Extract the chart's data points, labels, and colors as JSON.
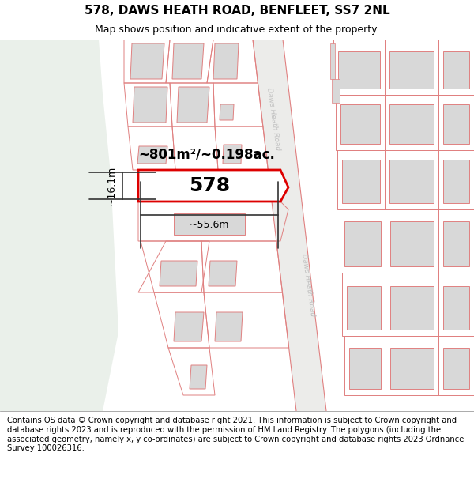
{
  "title": "578, DAWS HEATH ROAD, BENFLEET, SS7 2NL",
  "subtitle": "Map shows position and indicative extent of the property.",
  "footer": "Contains OS data © Crown copyright and database right 2021. This information is subject to Crown copyright and database rights 2023 and is reproduced with the permission of HM Land Registry. The polygons (including the associated geometry, namely x, y co-ordinates) are subject to Crown copyright and database rights 2023 Ordnance Survey 100026316.",
  "area_label": "~801m²/~0.198ac.",
  "width_label": "~55.6m",
  "height_label": "~16.1m",
  "property_number": "578",
  "map_bg": "#f8f8f6",
  "left_bg": "#eaf0ea",
  "road_bg": "#f0f0ee",
  "building_fill": "#d8d8d8",
  "building_stroke": "#e08080",
  "lot_stroke": "#e08080",
  "property_fill": "#ffffff",
  "property_stroke": "#dd0000",
  "road_label_color": "#c0c0c0",
  "title_fontsize": 11,
  "subtitle_fontsize": 9,
  "footer_fontsize": 7.2,
  "dim_fontsize": 9,
  "area_fontsize": 12,
  "prop_num_fontsize": 18
}
